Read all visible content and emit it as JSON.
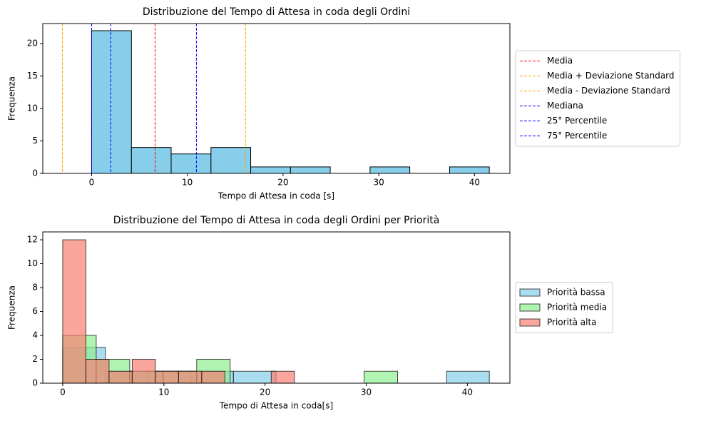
{
  "chart_data": [
    {
      "type": "histogram",
      "title": "Distribuzione del Tempo di Attesa in coda degli Ordini",
      "xlabel": "Tempo di Attesa in coda [s]",
      "ylabel": "Frequenza",
      "xlim": [
        -5.1,
        43.7
      ],
      "ylim": [
        0,
        23.1
      ],
      "xticks": [
        0,
        10,
        20,
        30,
        40
      ],
      "yticks": [
        0,
        5,
        10,
        15,
        20
      ],
      "legend": "right",
      "series": [
        {
          "name": null,
          "color": "#87ceeb",
          "opacity": 1,
          "bins": [
            0,
            4.16,
            8.31,
            12.47,
            16.62,
            20.78,
            24.93,
            29.09,
            33.24,
            37.4,
            41.55
          ],
          "values": [
            22,
            4,
            3,
            4,
            1,
            1,
            0,
            1,
            0,
            1
          ]
        }
      ],
      "lines": [
        {
          "name": "Media",
          "color": "#ff0000",
          "value": 6.63
        },
        {
          "name": "Media + Deviazione Standard",
          "color": "#ffa500",
          "value": 16.08
        },
        {
          "name": "Media - Deviazione Standard",
          "color": "#ffa500",
          "value": -3.05
        },
        {
          "name": "Mediana",
          "color": "#0000ff",
          "value": 2.0
        },
        {
          "name": "25° Percentile",
          "color": "#0000ff",
          "value": 0.0
        },
        {
          "name": "75° Percentile",
          "color": "#0000ff",
          "value": 10.95
        }
      ]
    },
    {
      "type": "histogram",
      "title": "Distribuzione del Tempo di Attesa in coda degli Ordini per Priorità",
      "xlabel": "Tempo di Attesa in coda[s]",
      "ylabel": "Frequenza",
      "xlim": [
        -1.97,
        44.2
      ],
      "ylim": [
        0,
        12.66
      ],
      "xticks": [
        0,
        10,
        20,
        30,
        40
      ],
      "yticks": [
        0,
        2,
        4,
        6,
        8,
        10,
        12
      ],
      "legend": "right",
      "series": [
        {
          "name": "Priorità bassa",
          "color": "#87ceeb",
          "opacity": 0.7,
          "bins": [
            0,
            4.22,
            8.43,
            12.65,
            16.87,
            21.08,
            25.3,
            29.52,
            33.73,
            37.95,
            42.17
          ],
          "values": [
            3,
            1,
            1,
            1,
            1,
            0,
            0,
            0,
            0,
            1
          ]
        },
        {
          "name": "Priorità media",
          "color": "#90ee90",
          "opacity": 0.7,
          "bins": [
            0,
            3.31,
            6.62,
            9.93,
            13.24,
            16.55,
            19.86,
            23.17,
            26.48,
            29.79,
            33.1
          ],
          "values": [
            4,
            2,
            1,
            1,
            2,
            0,
            0,
            0,
            0,
            1
          ]
        },
        {
          "name": "Priorità alta",
          "color": "#fa8072",
          "opacity": 0.7,
          "bins": [
            0,
            2.29,
            4.58,
            6.87,
            9.16,
            11.45,
            13.74,
            16.03,
            18.32,
            20.61,
            22.9
          ],
          "values": [
            12,
            2,
            1,
            2,
            1,
            1,
            1,
            0,
            0,
            1
          ]
        }
      ],
      "lines": []
    }
  ]
}
